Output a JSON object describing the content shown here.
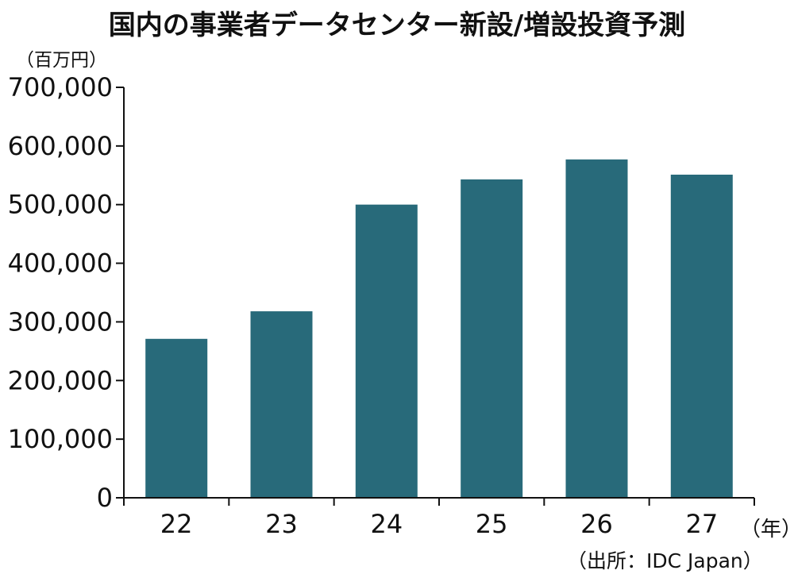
{
  "chart_data": {
    "type": "bar",
    "title": "国内の事業者データセンター新設/増設投資予測",
    "ylabel": "（百万円）",
    "xlabel": "（年）",
    "source": "（出所：IDC Japan）",
    "categories": [
      "22",
      "23",
      "24",
      "25",
      "26",
      "27"
    ],
    "values": [
      271000,
      318000,
      500000,
      543000,
      577000,
      551000
    ],
    "ylim": [
      0,
      700000
    ],
    "yticks": [
      0,
      100000,
      200000,
      300000,
      400000,
      500000,
      600000,
      700000
    ],
    "ytick_labels": [
      "0",
      "100,000",
      "200,000",
      "300,000",
      "400,000",
      "500,000",
      "600,000",
      "700,000"
    ],
    "grid": false,
    "legend": "none",
    "colors": {
      "bar": "#286a7a",
      "axis": "#111111"
    }
  }
}
